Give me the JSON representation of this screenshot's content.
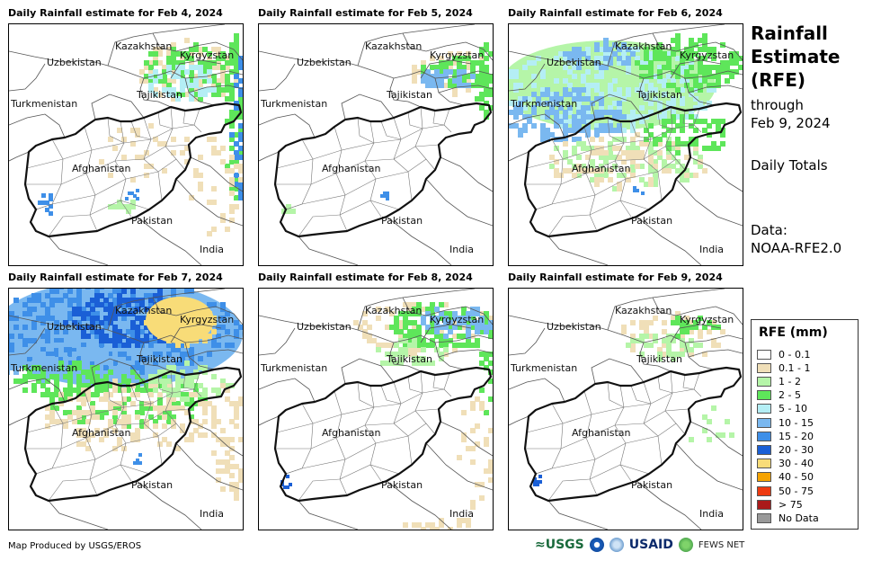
{
  "panels": [
    {
      "title": "Daily Rainfall estimate for Feb 4, 2024",
      "rain": "feb4"
    },
    {
      "title": "Daily Rainfall estimate for Feb 5, 2024",
      "rain": "feb5"
    },
    {
      "title": "Daily Rainfall estimate for Feb 6, 2024",
      "rain": "feb6"
    },
    {
      "title": "Daily Rainfall estimate for Feb 7, 2024",
      "rain": "feb7"
    },
    {
      "title": "Daily Rainfall estimate for Feb 8, 2024",
      "rain": "feb8"
    },
    {
      "title": "Daily Rainfall estimate for Feb 9, 2024",
      "rain": "feb9"
    }
  ],
  "map_labels": {
    "kazakhstan": "Kazakhstan",
    "kyrgyzstan": "Kyrgyzstan",
    "uzbekistan": "Uzbekistan",
    "tajikistan": "Tajikistan",
    "turkmenistan": "Turkmenistan",
    "afghanistan": "Afghanistan",
    "pakistan": "Pakistan",
    "india": "India"
  },
  "side": {
    "title_line1": "Rainfall",
    "title_line2": "Estimate",
    "title_line3": "(RFE)",
    "through_line1": "through",
    "through_line2": "Feb 9, 2024",
    "daily": "Daily Totals",
    "data_line1": "Data:",
    "data_line2": "NOAA-RFE2.0"
  },
  "legend": {
    "title": "RFE (mm)",
    "items": [
      {
        "label": "0 - 0.1",
        "color": "#ffffff"
      },
      {
        "label": "0.1 - 1",
        "color": "#f0dfb8"
      },
      {
        "label": "1 - 2",
        "color": "#b5f5a8"
      },
      {
        "label": "2 - 5",
        "color": "#5ee65a"
      },
      {
        "label": "5 - 10",
        "color": "#b4eef5"
      },
      {
        "label": "10 - 15",
        "color": "#7ab8f0"
      },
      {
        "label": "15 - 20",
        "color": "#3e8fe8"
      },
      {
        "label": "20 - 30",
        "color": "#1a5fd6"
      },
      {
        "label": "30 - 40",
        "color": "#f8dc78"
      },
      {
        "label": "40 - 50",
        "color": "#f5a300"
      },
      {
        "label": "50 - 75",
        "color": "#ee3a10"
      },
      {
        "label": "> 75",
        "color": "#aa1a1a"
      },
      {
        "label": "No Data",
        "color": "#999999"
      }
    ]
  },
  "footer": {
    "credit": "Map Produced by USGS/EROS",
    "usgs": "≈USGS",
    "usaid": "USAID",
    "fews": "FEWS NET"
  }
}
